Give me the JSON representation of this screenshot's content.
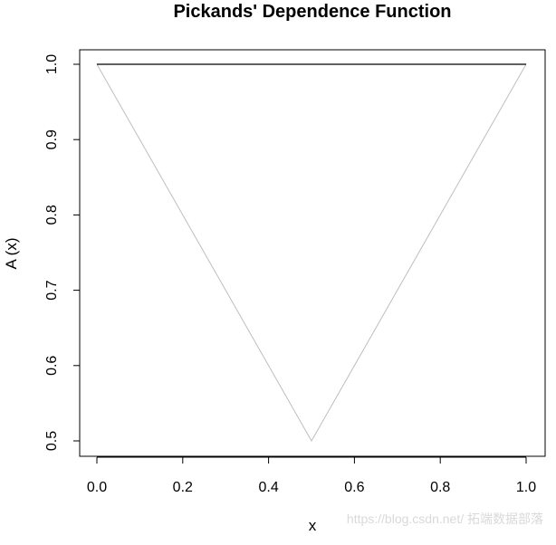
{
  "chart_data": {
    "type": "line",
    "title": "Pickands' Dependence Function",
    "xlabel": "x",
    "ylabel": "A (x)",
    "xlim": [
      0.0,
      1.0
    ],
    "ylim": [
      0.5,
      1.0
    ],
    "x_ticks": [
      "0.0",
      "0.2",
      "0.4",
      "0.6",
      "0.8",
      "1.0"
    ],
    "y_ticks": [
      "0.5",
      "0.6",
      "0.7",
      "0.8",
      "0.9",
      "1.0"
    ],
    "grid": false,
    "series": [
      {
        "color": "#000000",
        "x": [
          0.0,
          1.0
        ],
        "y": [
          1.0,
          1.0
        ]
      },
      {
        "color": "#bebebe",
        "x": [
          0.0,
          0.5,
          1.0
        ],
        "y": [
          1.0,
          0.5,
          1.0
        ]
      }
    ]
  },
  "watermark": "https://blog.csdn.net/  拓端数据部落"
}
